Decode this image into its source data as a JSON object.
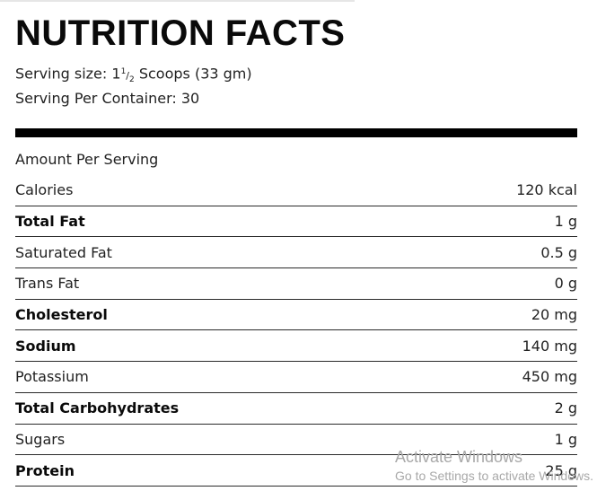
{
  "title": "NUTRITION FACTS",
  "serving": {
    "size_label": "Serving size: ",
    "size_whole": "1",
    "size_num": "1",
    "size_den": "2",
    "size_rest": " Scoops (33 gm)",
    "per_container": "Serving Per Container: 30"
  },
  "amount_label": "Amount Per Serving",
  "rows": [
    {
      "label": "Calories",
      "value": "120 kcal",
      "bold": false
    },
    {
      "label": "Total Fat",
      "value": "1 g",
      "bold": true
    },
    {
      "label": "Saturated Fat",
      "value": "0.5 g",
      "bold": false
    },
    {
      "label": "Trans Fat",
      "value": "0 g",
      "bold": false
    },
    {
      "label": "Cholesterol",
      "value": "20 mg",
      "bold": true
    },
    {
      "label": "Sodium",
      "value": "140 mg",
      "bold": true
    },
    {
      "label": "Potassium",
      "value": "450 mg",
      "bold": false
    },
    {
      "label": "Total Carbohydrates",
      "value": "2 g",
      "bold": true
    },
    {
      "label": "Sugars",
      "value": "1 g",
      "bold": false
    },
    {
      "label": "Protein",
      "value": "25 g",
      "bold": true
    }
  ],
  "watermark": {
    "line1": "Activate Windows",
    "line2": "Go to Settings to activate Windows."
  }
}
